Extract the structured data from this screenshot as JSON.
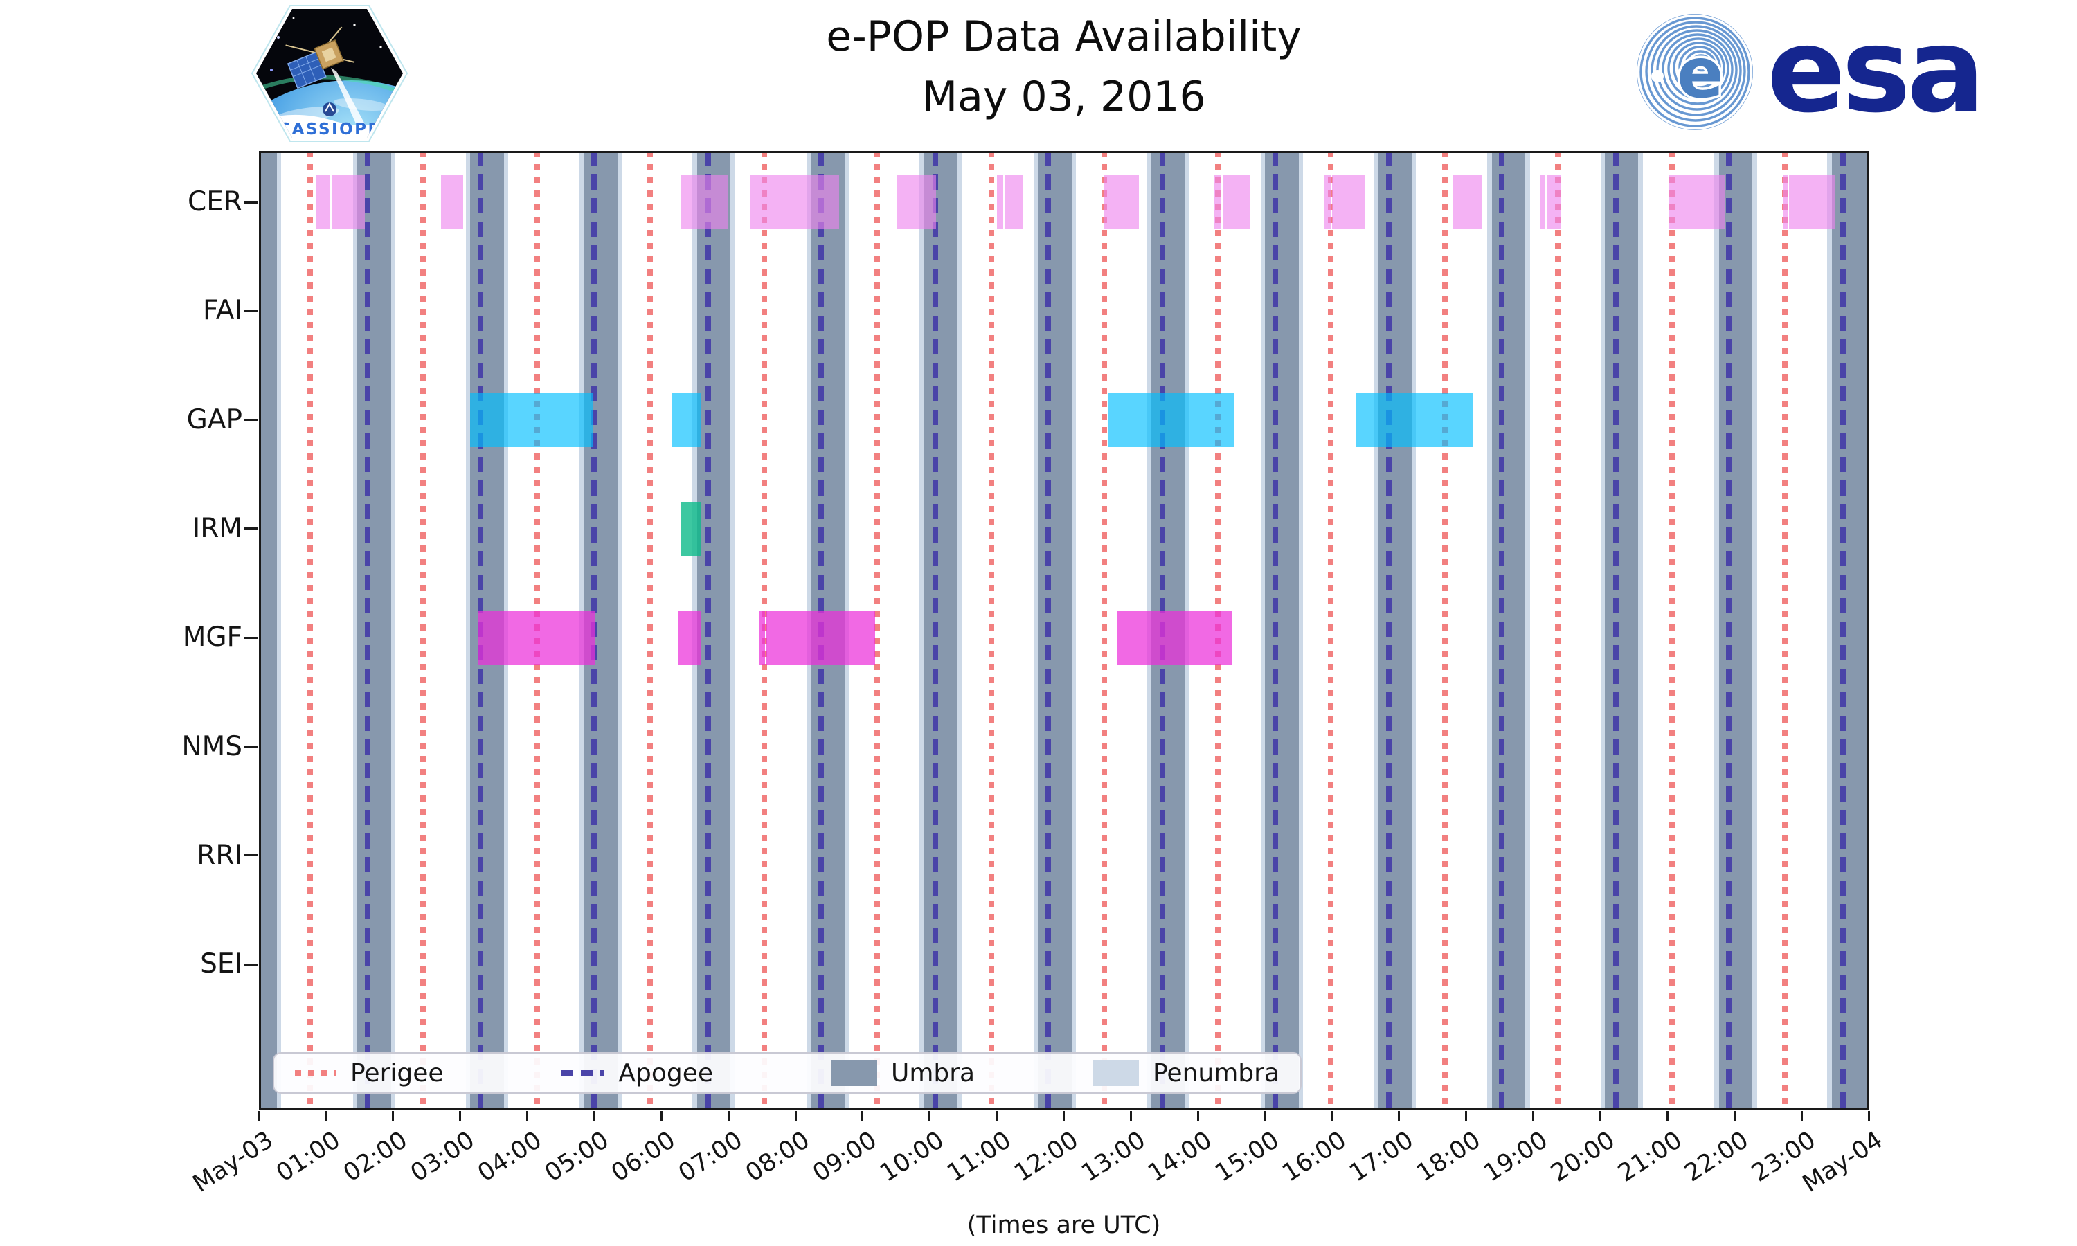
{
  "header": {
    "patch_label": "CASSIOPE",
    "esa_emblem_letter": "e",
    "esa_wordmark": "esa"
  },
  "chart_data": {
    "type": "bar",
    "subtype": "availability_timeline",
    "title": "e-POP Data Availability",
    "subtitle": "May 03, 2016",
    "xlabel": "(Times are UTC)",
    "x_axis": {
      "unit": "minutes since May-03 00:00 UTC",
      "range_minutes": [
        0,
        1440
      ],
      "tick_interval_minutes": 60,
      "tick_labels": [
        "May-03",
        "01:00",
        "02:00",
        "03:00",
        "04:00",
        "05:00",
        "06:00",
        "07:00",
        "08:00",
        "09:00",
        "10:00",
        "11:00",
        "12:00",
        "13:00",
        "14:00",
        "15:00",
        "16:00",
        "17:00",
        "18:00",
        "19:00",
        "20:00",
        "21:00",
        "22:00",
        "23:00",
        "May-04"
      ]
    },
    "categories": [
      "CER",
      "FAI",
      "GAP",
      "IRM",
      "MGF",
      "NMS",
      "RRI",
      "SEI"
    ],
    "series": [
      {
        "name": "CER",
        "css": "rgba(238,130,238,0.62)",
        "intervals_min": [
          [
            51,
            64
          ],
          [
            65,
            95
          ],
          [
            163,
            183
          ],
          [
            378,
            387
          ],
          [
            388,
            420
          ],
          [
            439,
            447
          ],
          [
            448,
            519
          ],
          [
            571,
            606
          ],
          [
            660,
            666
          ],
          [
            667,
            683
          ],
          [
            756,
            787
          ],
          [
            855,
            861
          ],
          [
            862,
            886
          ],
          [
            953,
            959
          ],
          [
            960,
            989
          ],
          [
            1068,
            1094
          ],
          [
            1146,
            1151
          ],
          [
            1152,
            1165
          ],
          [
            1261,
            1311
          ],
          [
            1363,
            1368
          ],
          [
            1369,
            1410
          ]
        ]
      },
      {
        "name": "FAI",
        "css": "rgba(238,130,238,0.62)",
        "intervals_min": []
      },
      {
        "name": "GAP",
        "css": "rgba(0,191,255,0.65)",
        "intervals_min": [
          [
            189,
            299
          ],
          [
            369,
            395
          ],
          [
            760,
            872
          ],
          [
            981,
            1086
          ]
        ]
      },
      {
        "name": "IRM",
        "css": "rgba(13,186,138,0.80)",
        "intervals_min": [
          [
            378,
            396
          ]
        ]
      },
      {
        "name": "MGF",
        "css": "rgba(236,47,218,0.72)",
        "intervals_min": [
          [
            196,
            301
          ],
          [
            375,
            396
          ],
          [
            448,
            453
          ],
          [
            454,
            551
          ],
          [
            768,
            871
          ]
        ]
      },
      {
        "name": "NMS",
        "css": "rgba(238,130,238,0.62)",
        "intervals_min": []
      },
      {
        "name": "RRI",
        "css": "rgba(238,130,238,0.62)",
        "intervals_min": []
      },
      {
        "name": "SEI",
        "css": "rgba(238,130,238,0.62)",
        "intervals_min": []
      }
    ],
    "events": {
      "perigee_min": [
        46,
        147,
        249,
        350,
        452,
        553,
        655,
        756,
        858,
        959,
        1061,
        1162,
        1264,
        1365
      ],
      "apogee_min": [
        97,
        198,
        300,
        402,
        503,
        605,
        706,
        808,
        909,
        1011,
        1112,
        1214,
        1315,
        1417
      ]
    },
    "shading": {
      "umbra_intervals_min": [
        [
          0,
          16
        ],
        [
          88,
          118
        ],
        [
          189,
          219
        ],
        [
          291,
          321
        ],
        [
          392,
          422
        ],
        [
          494,
          524
        ],
        [
          595,
          625
        ],
        [
          697,
          727
        ],
        [
          798,
          828
        ],
        [
          900,
          930
        ],
        [
          1001,
          1031
        ],
        [
          1103,
          1133
        ],
        [
          1204,
          1234
        ],
        [
          1306,
          1336
        ],
        [
          1407,
          1440
        ]
      ],
      "penumbra_margin_min": 4
    },
    "legend": {
      "position": "lower left",
      "entries": [
        "Perigee",
        "Apogee",
        "Umbra",
        "Penumbra"
      ]
    },
    "colors": {
      "umbra": "#8798AD",
      "penumbra": "#CDD9E7",
      "perigee": "#F28080",
      "apogee": "#4A44A8",
      "cer": "#EE82EE",
      "gap": "#00BFFF",
      "irm": "#0DBA8A",
      "mgf": "#EC2FDA",
      "esa_navy": "#15268F",
      "patch_blue": "#2F6FD6"
    },
    "grid": false
  }
}
